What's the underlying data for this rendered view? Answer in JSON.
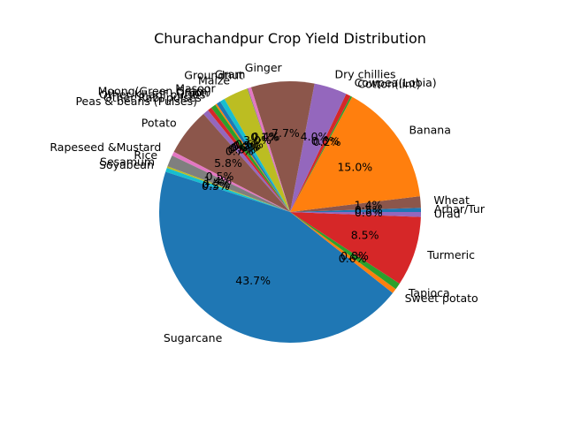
{
  "chart_data": {
    "type": "pie",
    "title": "Churachandpur Crop Yield Distribution",
    "start_angle_deg": 0,
    "direction": "counterclockwise",
    "slices": [
      {
        "label": "Arhar/Tur",
        "value": 0.5,
        "pct_label": "0.5%",
        "color": "#1f77b4"
      },
      {
        "label": "Wheat",
        "value": 1.4,
        "pct_label": "1.4%",
        "color": "#8c564b"
      },
      {
        "label": "",
        "value": 0.0,
        "pct_label": "",
        "color": "#e377c2"
      },
      {
        "label": "Banana",
        "value": 15.0,
        "pct_label": "15.0%",
        "color": "#ff7f0e"
      },
      {
        "label": "Cotton(lint)",
        "value": 0.2,
        "pct_label": "0.2%",
        "color": "#2ca02c"
      },
      {
        "label": "Cowpea(Lobia)",
        "value": 0.6,
        "pct_label": "0.6%",
        "color": "#d62728"
      },
      {
        "label": "Dry chillies",
        "value": 4.0,
        "pct_label": "4.0%",
        "color": "#9467bd"
      },
      {
        "label": "Ginger",
        "value": 7.7,
        "pct_label": "7.7%",
        "color": "#8c564b"
      },
      {
        "label": "Gram",
        "value": 0.4,
        "pct_label": "0.4%",
        "color": "#e377c2"
      },
      {
        "label": "Groundnut",
        "value": 0.1,
        "pct_label": "0.1%",
        "color": "#7f7f7f"
      },
      {
        "label": "Maize",
        "value": 3.0,
        "pct_label": "3.0%",
        "color": "#bcbd22"
      },
      {
        "label": "Masoor",
        "value": 0.6,
        "pct_label": "0.6%",
        "color": "#17becf"
      },
      {
        "label": "Moong(Green Gram)",
        "value": 0.5,
        "pct_label": "0.5%",
        "color": "#1f77b4"
      },
      {
        "label": "Onion",
        "value": 0.2,
        "pct_label": "0.2%",
        "color": "#ff7f0e"
      },
      {
        "label": "Other Kharif pulses",
        "value": 0.6,
        "pct_label": "0.6%",
        "color": "#2ca02c"
      },
      {
        "label": "Other Rabi pulses",
        "value": 0.5,
        "pct_label": "0.5%",
        "color": "#d62728"
      },
      {
        "label": "Peas & beans (Pulses)",
        "value": 0.7,
        "pct_label": "0.7%",
        "color": "#9467bd"
      },
      {
        "label": "Potato",
        "value": 5.8,
        "pct_label": "5.8%",
        "color": "#8c564b"
      },
      {
        "label": "Rapeseed &Mustard",
        "value": 0.5,
        "pct_label": "0.5%",
        "color": "#e377c2"
      },
      {
        "label": "Rice",
        "value": 1.4,
        "pct_label": "1.4%",
        "color": "#7f7f7f"
      },
      {
        "label": "Sesamum",
        "value": 0.2,
        "pct_label": "0.2%",
        "color": "#bcbd22"
      },
      {
        "label": "Soyabean",
        "value": 0.5,
        "pct_label": "0.5%",
        "color": "#17becf"
      },
      {
        "label": "Sugarcane",
        "value": 43.7,
        "pct_label": "43.7%",
        "color": "#1f77b4"
      },
      {
        "label": "Sweet potato",
        "value": 0.6,
        "pct_label": "0.6%",
        "color": "#ff7f0e"
      },
      {
        "label": "Tapioca",
        "value": 0.8,
        "pct_label": "0.8%",
        "color": "#2ca02c"
      },
      {
        "label": "Turmeric",
        "value": 8.5,
        "pct_label": "8.5%",
        "color": "#d62728"
      },
      {
        "label": "Urad",
        "value": 0.6,
        "pct_label": "0.6%",
        "color": "#9467bd"
      }
    ]
  }
}
